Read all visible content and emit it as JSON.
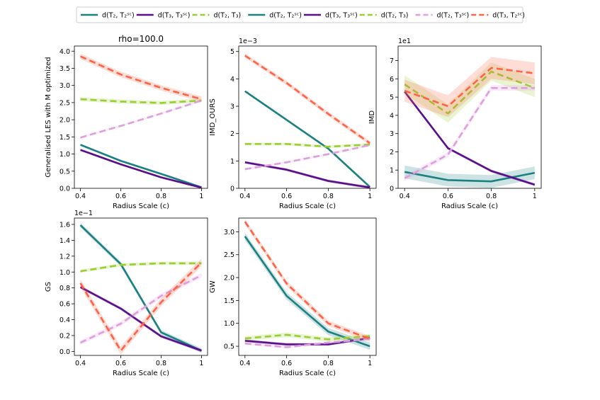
{
  "colors": {
    "teal": "#1a8080",
    "purple": "#5a0f8a",
    "green": "#9acd32",
    "pink": "#dda0dd",
    "red": "#ff6347"
  },
  "legend": {
    "entries": [
      {
        "label": "d(T₂, T₂ˢᶜ)",
        "color": "teal",
        "dash": false
      },
      {
        "label": "d(T₃, T₃ˢᶜ)",
        "color": "purple",
        "dash": false
      },
      {
        "label": "d(T₂, T₃)",
        "color": "green",
        "dash": true
      },
      {
        "label": "d(T₂, T₂ˢᶜ)",
        "color": "teal",
        "dash": false
      },
      {
        "label": "d(T₃, T₃ˢᶜ)",
        "color": "purple",
        "dash": false
      },
      {
        "label": "d(T₂, T₃)",
        "color": "green",
        "dash": true
      },
      {
        "label": "d(T₂, T₃ˢᶜ)",
        "color": "pink",
        "dash": true
      },
      {
        "label": "d(T₃, T₂ˢᶜ)",
        "color": "red",
        "dash": true
      }
    ]
  },
  "chart_data": [
    {
      "type": "line",
      "title": "rho=100.0",
      "xlabel": "Radius Scale (c)",
      "ylabel": "Generalised LES with M optimized",
      "offset_label": "",
      "x": [
        0.4,
        0.6,
        0.8,
        1.0
      ],
      "xticks": [
        "0.4",
        "0.6",
        "0.8",
        "1"
      ],
      "ylim": [
        0,
        4.15
      ],
      "yticks": [
        "0.0",
        "0.5",
        "1.0",
        "1.5",
        "2.0",
        "2.5",
        "3.0",
        "3.5",
        "4.0"
      ],
      "ytick_values": [
        0,
        0.5,
        1.0,
        1.5,
        2.0,
        2.5,
        3.0,
        3.5,
        4.0
      ],
      "series": [
        {
          "color": "teal",
          "dash": false,
          "values": [
            1.27,
            0.8,
            0.42,
            0.03
          ],
          "band": 0.03
        },
        {
          "color": "purple",
          "dash": false,
          "values": [
            1.12,
            0.7,
            0.32,
            0.02
          ],
          "band": 0.03
        },
        {
          "color": "green",
          "dash": true,
          "values": [
            2.6,
            2.53,
            2.49,
            2.56
          ],
          "band": 0.06
        },
        {
          "color": "pink",
          "dash": true,
          "values": [
            1.48,
            1.82,
            2.18,
            2.56
          ],
          "band": 0.03
        },
        {
          "color": "red",
          "dash": true,
          "values": [
            3.85,
            3.32,
            2.93,
            2.6
          ],
          "band": 0.08
        }
      ]
    },
    {
      "type": "line",
      "title": "",
      "xlabel": "Radius Scale (c)",
      "ylabel": "IMD_OURS",
      "offset_label": "1e−3",
      "x": [
        0.4,
        0.6,
        0.8,
        1.0
      ],
      "xticks": [
        "0.4",
        "0.6",
        "0.8",
        "1"
      ],
      "ylim": [
        0,
        5.2
      ],
      "yticks": [
        "0",
        "1",
        "2",
        "3",
        "4",
        "5"
      ],
      "ytick_values": [
        0,
        1,
        2,
        3,
        4,
        5
      ],
      "series": [
        {
          "color": "teal",
          "dash": false,
          "values": [
            3.55,
            2.5,
            1.45,
            0.05
          ],
          "band": 0.04
        },
        {
          "color": "purple",
          "dash": false,
          "values": [
            0.95,
            0.68,
            0.27,
            0.03
          ],
          "band": 0.05
        },
        {
          "color": "green",
          "dash": true,
          "values": [
            1.62,
            1.62,
            1.52,
            1.6
          ],
          "band": 0.05
        },
        {
          "color": "pink",
          "dash": true,
          "values": [
            0.7,
            0.95,
            1.25,
            1.58
          ],
          "band": 0.04
        },
        {
          "color": "red",
          "dash": true,
          "values": [
            4.85,
            3.85,
            2.72,
            1.65
          ],
          "band": 0.08
        }
      ]
    },
    {
      "type": "line",
      "title": "",
      "xlabel": "Radius Scale (c)",
      "ylabel": "IMD",
      "offset_label": "1e1",
      "x": [
        0.4,
        0.6,
        0.8,
        1.0
      ],
      "xticks": [
        "0.4",
        "0.6",
        "0.8",
        "1"
      ],
      "ylim": [
        0,
        7.8
      ],
      "yticks": [
        "0",
        "1",
        "2",
        "3",
        "4",
        "5",
        "6",
        "7"
      ],
      "ytick_values": [
        0,
        1,
        2,
        3,
        4,
        5,
        6,
        7
      ],
      "series": [
        {
          "color": "teal",
          "dash": false,
          "values": [
            0.9,
            0.45,
            0.38,
            0.85
          ],
          "band": 0.35
        },
        {
          "color": "purple",
          "dash": false,
          "values": [
            5.3,
            2.2,
            0.95,
            0.2
          ],
          "band": 0.08
        },
        {
          "color": "green",
          "dash": true,
          "values": [
            5.7,
            4.1,
            6.4,
            5.5
          ],
          "band": 0.5
        },
        {
          "color": "pink",
          "dash": true,
          "values": [
            0.55,
            1.85,
            5.5,
            5.5
          ],
          "band": 0.15
        },
        {
          "color": "red",
          "dash": true,
          "values": [
            5.35,
            4.5,
            6.6,
            6.3
          ],
          "band": 0.6
        }
      ]
    },
    {
      "type": "line",
      "title": "",
      "xlabel": "Radius Scale (c)",
      "ylabel": "GS",
      "offset_label": "1e−1",
      "x": [
        0.4,
        0.6,
        0.8,
        1.0
      ],
      "xticks": [
        "0.4",
        "0.6",
        "0.8",
        "1"
      ],
      "ylim": [
        -0.05,
        1.68
      ],
      "yticks": [
        "0.0",
        "0.2",
        "0.4",
        "0.6",
        "0.8",
        "1.0",
        "1.2",
        "1.4",
        "1.6"
      ],
      "ytick_values": [
        0,
        0.2,
        0.4,
        0.6,
        0.8,
        1.0,
        1.2,
        1.4,
        1.6
      ],
      "series": [
        {
          "color": "teal",
          "dash": false,
          "values": [
            1.59,
            1.1,
            0.24,
            0.01
          ],
          "band": 0.03
        },
        {
          "color": "purple",
          "dash": false,
          "values": [
            0.81,
            0.54,
            0.19,
            0.01
          ],
          "band": 0.02
        },
        {
          "color": "green",
          "dash": true,
          "values": [
            1.01,
            1.09,
            1.11,
            1.11
          ],
          "band": 0.02
        },
        {
          "color": "pink",
          "dash": true,
          "values": [
            0.11,
            0.35,
            0.7,
            0.96
          ],
          "band": 0.03
        },
        {
          "color": "red",
          "dash": true,
          "values": [
            0.86,
            0.01,
            0.62,
            1.12
          ],
          "band": 0.05
        }
      ]
    },
    {
      "type": "line",
      "title": "",
      "xlabel": "Radius Scale (c)",
      "ylabel": "GW",
      "offset_label": "",
      "x": [
        0.4,
        0.6,
        0.8,
        1.0
      ],
      "xticks": [
        "0.4",
        "0.6",
        "0.8",
        "1"
      ],
      "ylim": [
        0.3,
        3.3
      ],
      "yticks": [
        "0.5",
        "1.0",
        "1.5",
        "2.0",
        "2.5",
        "3.0"
      ],
      "ytick_values": [
        0.5,
        1.0,
        1.5,
        2.0,
        2.5,
        3.0
      ],
      "series": [
        {
          "color": "teal",
          "dash": false,
          "values": [
            2.9,
            1.6,
            0.82,
            0.5
          ],
          "band": 0.08
        },
        {
          "color": "purple",
          "dash": false,
          "values": [
            0.62,
            0.54,
            0.54,
            0.68
          ],
          "band": 0.03
        },
        {
          "color": "green",
          "dash": true,
          "values": [
            0.67,
            0.75,
            0.65,
            0.72
          ],
          "band": 0.05
        },
        {
          "color": "pink",
          "dash": true,
          "values": [
            0.56,
            0.48,
            0.58,
            0.66
          ],
          "band": 0.03
        },
        {
          "color": "red",
          "dash": true,
          "values": [
            3.22,
            1.87,
            1.0,
            0.66
          ],
          "band": 0.06
        }
      ]
    }
  ]
}
